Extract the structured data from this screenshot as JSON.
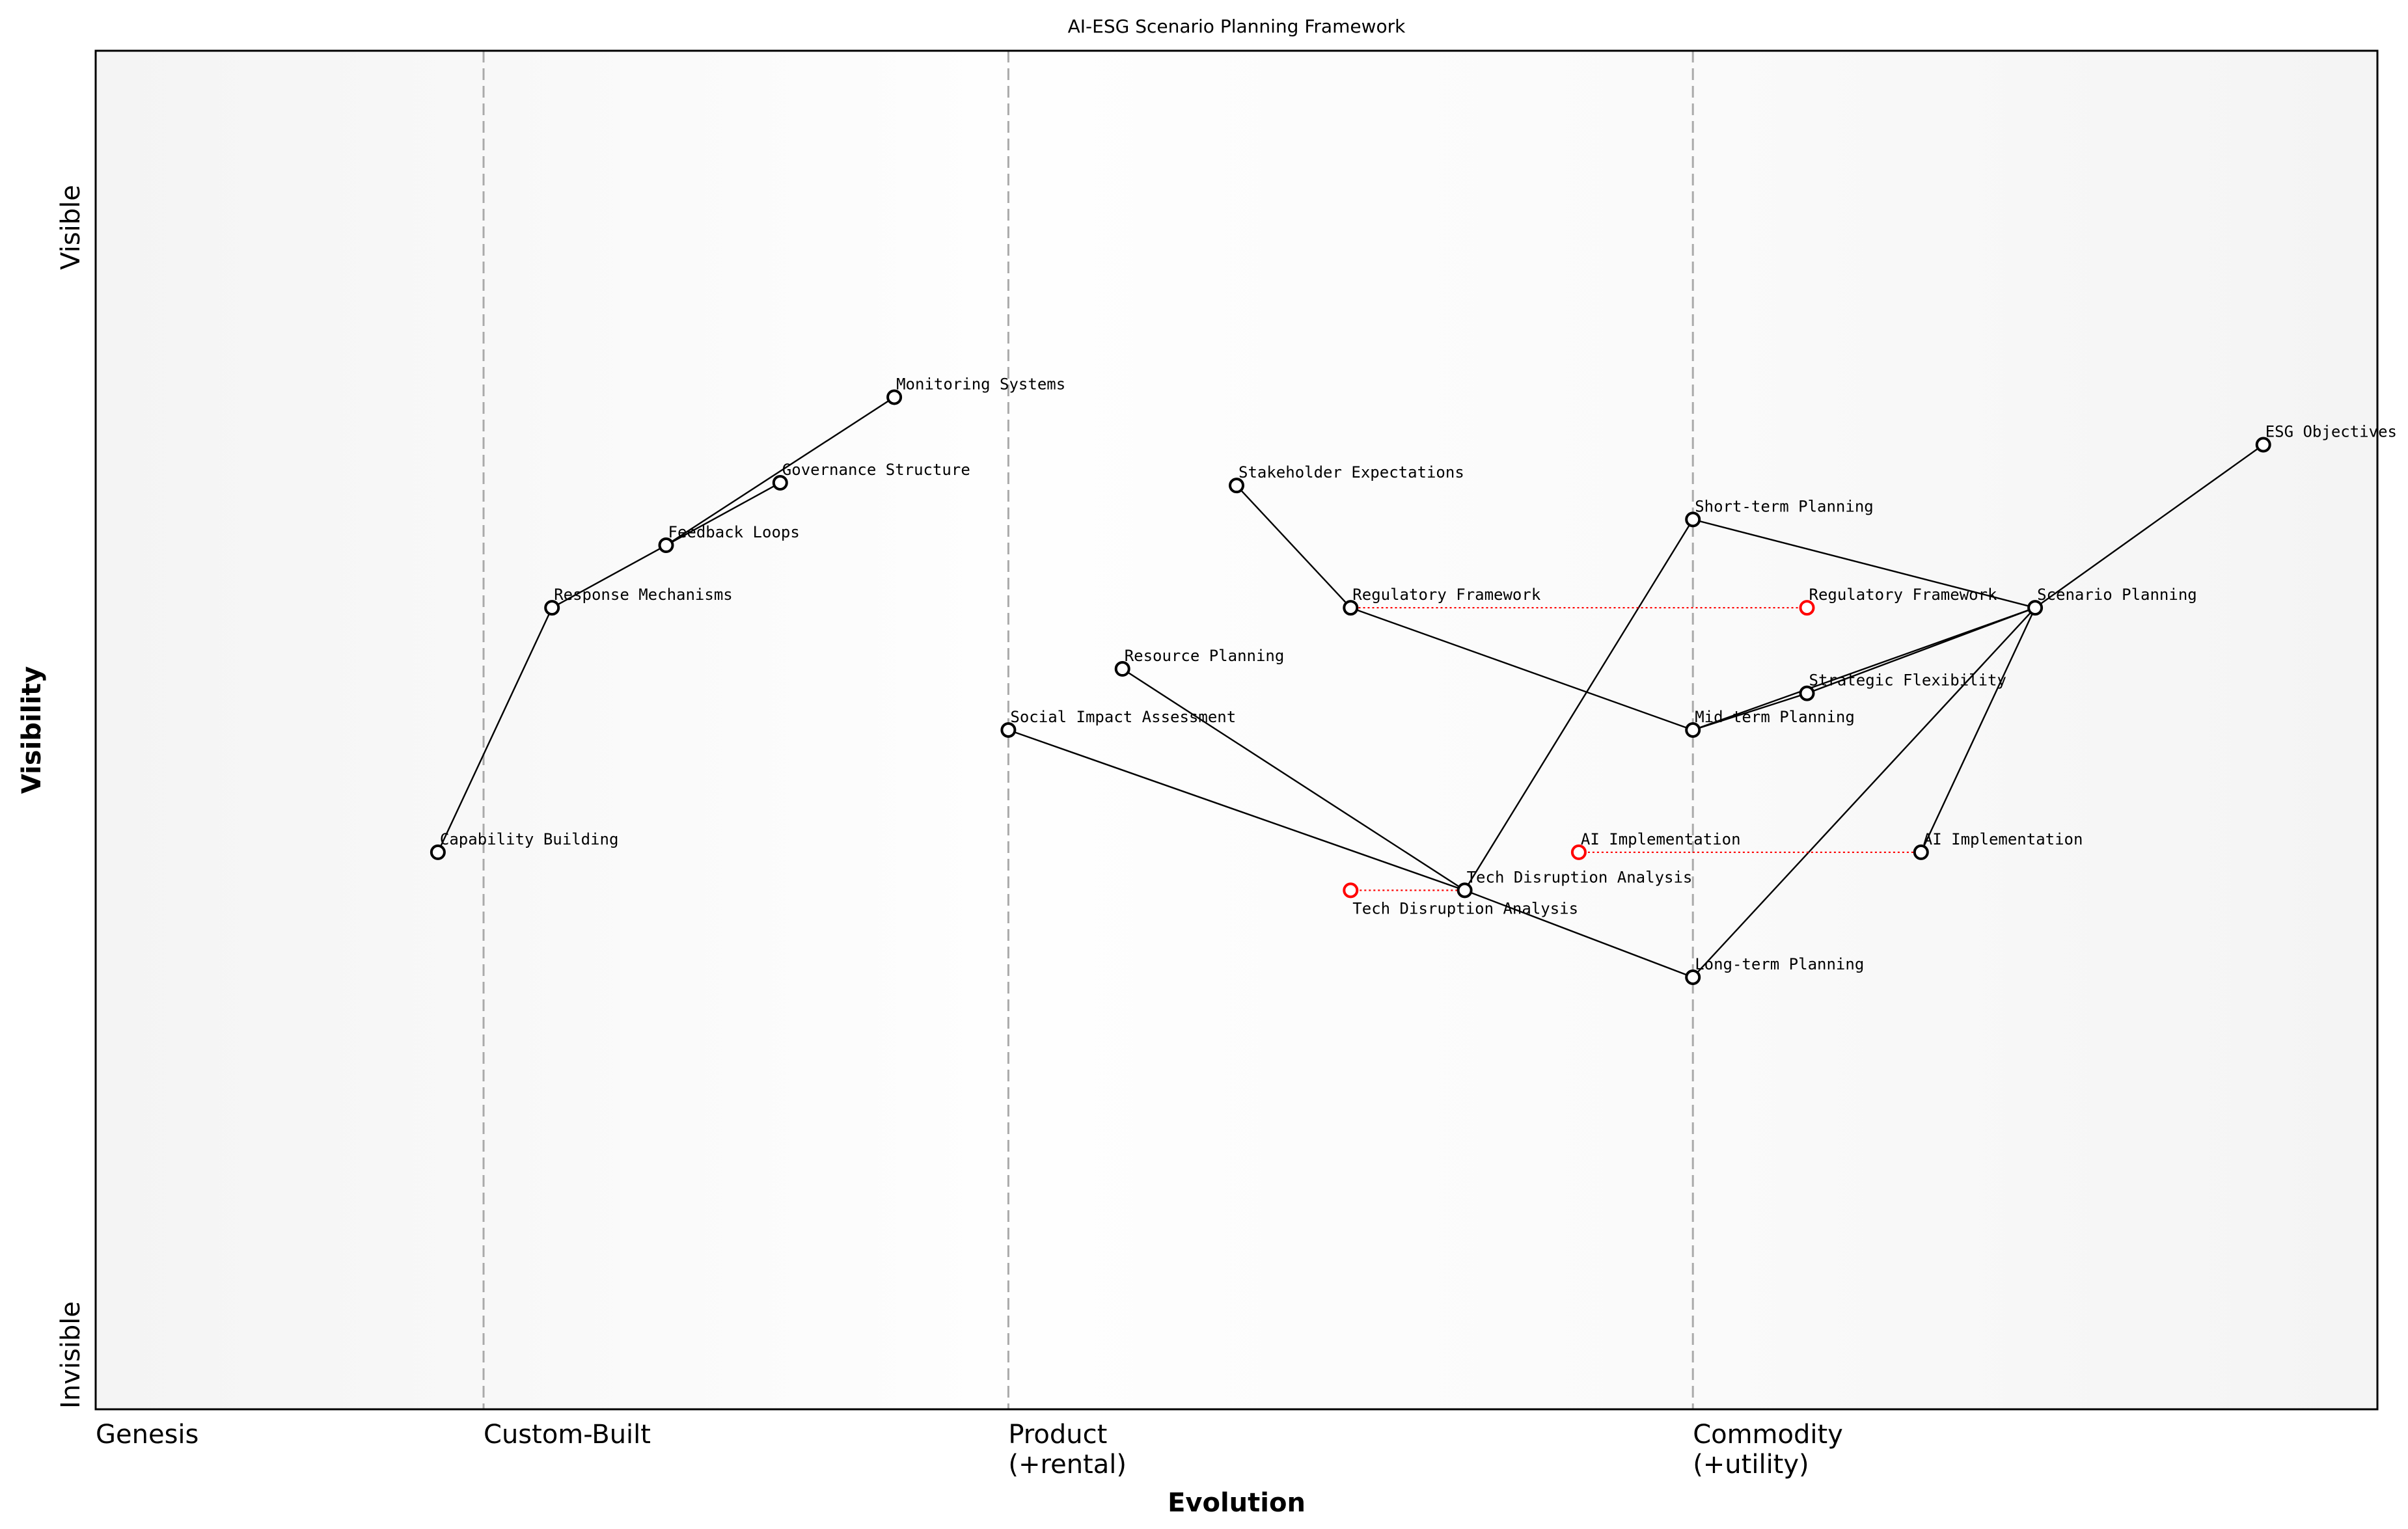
{
  "chart_data": {
    "type": "scatter",
    "subtype": "wardley-map",
    "title": "AI-ESG Scenario Planning Framework",
    "xlabel": "Evolution",
    "ylabel": "Visibility",
    "xlim": [
      0,
      1
    ],
    "ylim": [
      0,
      1
    ],
    "grid": false,
    "x_stages": [
      {
        "label": "Genesis",
        "x": 0.0
      },
      {
        "label": "Custom-Built",
        "x": 0.17
      },
      {
        "label": "Product\n(+rental)",
        "x": 0.4
      },
      {
        "label": "Commodity\n(+utility)",
        "x": 0.7
      }
    ],
    "y_ticks": [
      {
        "label": "Visible",
        "y": 0.87
      },
      {
        "label": "Invisible",
        "y": 0.04
      }
    ],
    "colors": {
      "node": "#000000",
      "evolved_node": "#ff0000",
      "link": "#000000",
      "evolution_link": "#ff0000",
      "stage_line": "#aaaaaa"
    },
    "nodes": [
      {
        "id": "esg",
        "label": "ESG Objectives",
        "x": 0.95,
        "y": 0.71
      },
      {
        "id": "scenario",
        "label": "Scenario Planning",
        "x": 0.85,
        "y": 0.59
      },
      {
        "id": "short",
        "label": "Short-term Planning",
        "x": 0.7,
        "y": 0.655
      },
      {
        "id": "mid",
        "label": "Mid-term Planning",
        "x": 0.7,
        "y": 0.5
      },
      {
        "id": "long",
        "label": "Long-term Planning",
        "x": 0.7,
        "y": 0.318
      },
      {
        "id": "flex",
        "label": "Strategic Flexibility",
        "x": 0.75,
        "y": 0.527
      },
      {
        "id": "ai",
        "label": "AI Implementation",
        "x": 0.8,
        "y": 0.41
      },
      {
        "id": "reg",
        "label": "Regulatory Framework",
        "x": 0.55,
        "y": 0.59
      },
      {
        "id": "stake",
        "label": "Stakeholder Expectations",
        "x": 0.5,
        "y": 0.68
      },
      {
        "id": "res",
        "label": "Resource Planning",
        "x": 0.45,
        "y": 0.545
      },
      {
        "id": "social",
        "label": "Social Impact Assessment",
        "x": 0.4,
        "y": 0.5
      },
      {
        "id": "tech",
        "label": "Tech Disruption Analysis",
        "x": 0.6,
        "y": 0.382
      },
      {
        "id": "cap",
        "label": "Capability Building",
        "x": 0.15,
        "y": 0.41
      },
      {
        "id": "resp",
        "label": "Response Mechanisms",
        "x": 0.2,
        "y": 0.59
      },
      {
        "id": "feed",
        "label": "Feedback Loops",
        "x": 0.25,
        "y": 0.636
      },
      {
        "id": "gov",
        "label": "Governance Structure",
        "x": 0.3,
        "y": 0.682
      },
      {
        "id": "mon",
        "label": "Monitoring Systems",
        "x": 0.35,
        "y": 0.745
      }
    ],
    "evolved_nodes": [
      {
        "of": "reg",
        "label": "Regulatory Framework",
        "x": 0.75,
        "y": 0.59
      },
      {
        "of": "ai",
        "label": "AI Implementation",
        "x": 0.65,
        "y": 0.41
      },
      {
        "of": "tech",
        "label": "Tech Disruption Analysis",
        "x": 0.55,
        "y": 0.382
      }
    ],
    "links": [
      [
        "esg",
        "scenario"
      ],
      [
        "scenario",
        "short"
      ],
      [
        "scenario",
        "mid"
      ],
      [
        "scenario",
        "long"
      ],
      [
        "scenario",
        "flex"
      ],
      [
        "scenario",
        "ai"
      ],
      [
        "mid",
        "flex"
      ],
      [
        "short",
        "tech"
      ],
      [
        "stake",
        "reg"
      ],
      [
        "reg",
        "mid"
      ],
      [
        "res",
        "tech"
      ],
      [
        "social",
        "tech"
      ],
      [
        "tech",
        "long"
      ],
      [
        "cap",
        "resp"
      ],
      [
        "resp",
        "feed"
      ],
      [
        "feed",
        "gov"
      ],
      [
        "feed",
        "mon"
      ]
    ]
  }
}
